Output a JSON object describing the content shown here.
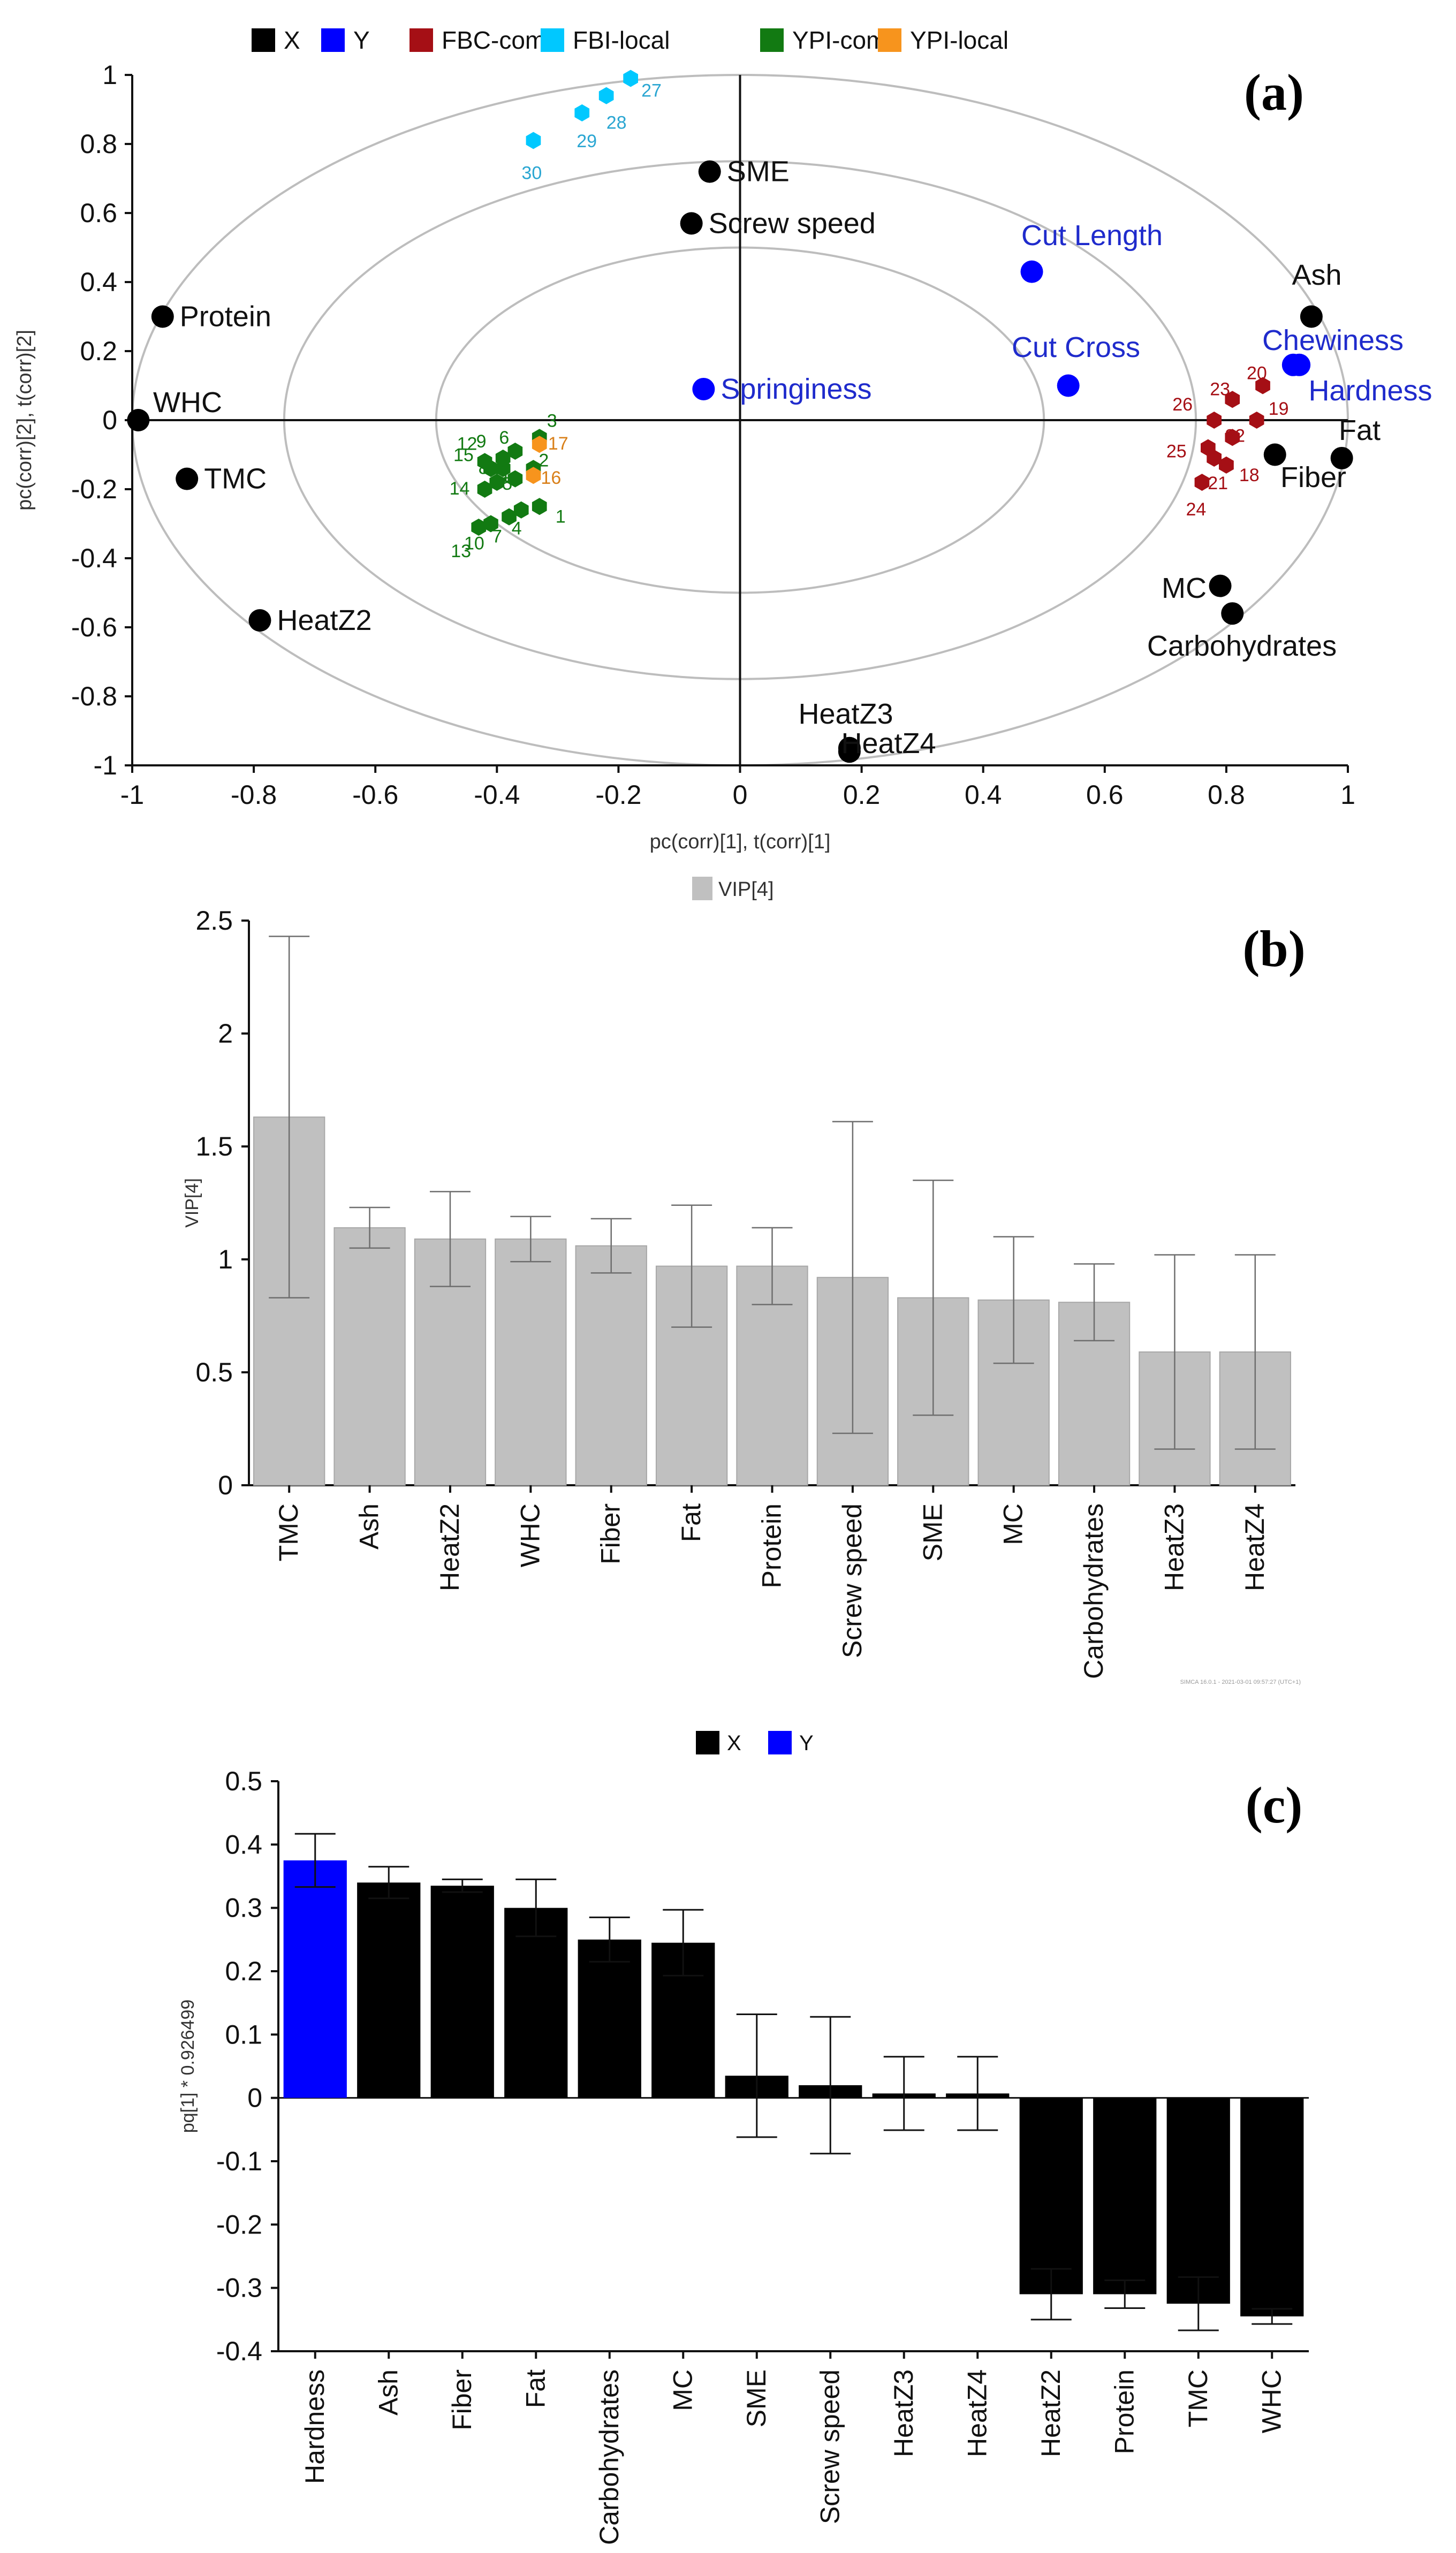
{
  "colors": {
    "x": "#000000",
    "y": "#0000ff",
    "fbc_com": "#a50f15",
    "fbi_local": "#00c8ff",
    "ypi_com": "#127a12",
    "ypi_local": "#f7941d",
    "vip_bar": "#c0c0c0",
    "text_blue": "#1f2bcc",
    "fbi_text": "#2aa6d2",
    "fbc_text": "#a50f15",
    "ypi_text": "#127a12",
    "ypi_local_text": "#d9801a"
  },
  "chart_data": [
    {
      "type": "scatter",
      "panel_label": "(a)",
      "title": "",
      "xlabel": "pc(corr)[1], t(corr)[1]",
      "ylabel": "pc(corr)[2], t(corr)[2]",
      "xlim": [
        -1,
        1
      ],
      "ylim": [
        -1,
        1
      ],
      "x_ticks": [
        "-1",
        "-0.8",
        "-0.6",
        "-0.4",
        "-0.2",
        "0",
        "0.2",
        "0.4",
        "0.6",
        "0.8",
        "1"
      ],
      "y_ticks": [
        "1",
        "0.8",
        "0.6",
        "0.4",
        "0.2",
        "0",
        "-0.2",
        "-0.4",
        "-0.6",
        "-0.8",
        "-1"
      ],
      "circles_r": [
        1.0,
        0.75,
        0.5
      ],
      "legend": [
        {
          "label": "X",
          "key": "x"
        },
        {
          "label": "Y",
          "key": "y"
        },
        {
          "label": "FBC-com",
          "key": "fbc_com"
        },
        {
          "label": "FBI-local",
          "key": "fbi_local"
        },
        {
          "label": "YPI-com",
          "key": "ypi_com"
        },
        {
          "label": "YPI-local",
          "key": "ypi_local"
        }
      ],
      "x_variables": [
        {
          "label": "SME",
          "x": -0.05,
          "y": 0.72,
          "pos": "right"
        },
        {
          "label": "Screw speed",
          "x": -0.08,
          "y": 0.57,
          "pos": "right"
        },
        {
          "label": "Protein",
          "x": -0.95,
          "y": 0.3,
          "pos": "right"
        },
        {
          "label": "WHC",
          "x": -0.99,
          "y": 0.0,
          "pos": "upright"
        },
        {
          "label": "TMC",
          "x": -0.91,
          "y": -0.17,
          "pos": "right"
        },
        {
          "label": "HeatZ2",
          "x": -0.79,
          "y": -0.58,
          "pos": "right"
        },
        {
          "label": "Ash",
          "x": 0.94,
          "y": 0.3,
          "pos": "up"
        },
        {
          "label": "Fat",
          "x": 0.99,
          "y": -0.11,
          "pos": "upright"
        },
        {
          "label": "Fiber",
          "x": 0.88,
          "y": -0.1,
          "pos": "downright"
        },
        {
          "label": "MC",
          "x": 0.79,
          "y": -0.48,
          "pos": "left"
        },
        {
          "label": "Carbohydrates",
          "x": 0.81,
          "y": -0.56,
          "pos": "below"
        },
        {
          "label": "HeatZ3",
          "x": 0.18,
          "y": -0.95,
          "pos": "upleft"
        },
        {
          "label": "HeatZ4",
          "x": 0.18,
          "y": -0.96,
          "pos": "right"
        }
      ],
      "y_variables": [
        {
          "label": "Cut Length",
          "x": 0.48,
          "y": 0.43,
          "pos": "up"
        },
        {
          "label": "Cut Cross",
          "x": 0.54,
          "y": 0.1,
          "pos": "upleft"
        },
        {
          "label": "Springiness",
          "x": -0.06,
          "y": 0.09,
          "pos": "right"
        },
        {
          "label": "Chewiness",
          "x": 0.91,
          "y": 0.16,
          "pos": "upleft"
        },
        {
          "label": "Hardness",
          "x": 0.92,
          "y": 0.16,
          "pos": "downright"
        }
      ],
      "observations": [
        {
          "id": "1",
          "group": "ypi_com",
          "x": -0.33,
          "y": -0.25
        },
        {
          "id": "2",
          "group": "ypi_com",
          "x": -0.34,
          "y": -0.14
        },
        {
          "id": "3",
          "group": "ypi_com",
          "x": -0.33,
          "y": -0.05
        },
        {
          "id": "4",
          "group": "ypi_com",
          "x": -0.36,
          "y": -0.26
        },
        {
          "id": "5",
          "group": "ypi_com",
          "x": -0.4,
          "y": -0.18
        },
        {
          "id": "6",
          "group": "ypi_com",
          "x": -0.37,
          "y": -0.09
        },
        {
          "id": "7",
          "group": "ypi_com",
          "x": -0.38,
          "y": -0.28
        },
        {
          "id": "8",
          "group": "ypi_com",
          "x": -0.39,
          "y": -0.14
        },
        {
          "id": "9",
          "group": "ypi_com",
          "x": -0.39,
          "y": -0.11
        },
        {
          "id": "10",
          "group": "ypi_com",
          "x": -0.41,
          "y": -0.3
        },
        {
          "id": "11",
          "group": "ypi_com",
          "x": -0.37,
          "y": -0.17
        },
        {
          "id": "12",
          "group": "ypi_com",
          "x": -0.42,
          "y": -0.12
        },
        {
          "id": "13",
          "group": "ypi_com",
          "x": -0.43,
          "y": -0.31
        },
        {
          "id": "14",
          "group": "ypi_com",
          "x": -0.42,
          "y": -0.2
        },
        {
          "id": "15",
          "group": "ypi_com",
          "x": -0.41,
          "y": -0.14
        },
        {
          "id": "16",
          "group": "ypi_local",
          "x": -0.34,
          "y": -0.16
        },
        {
          "id": "17",
          "group": "ypi_local",
          "x": -0.33,
          "y": -0.07
        },
        {
          "id": "18",
          "group": "fbc_com",
          "x": 0.8,
          "y": -0.13
        },
        {
          "id": "19",
          "group": "fbc_com",
          "x": 0.85,
          "y": 0.0
        },
        {
          "id": "20",
          "group": "fbc_com",
          "x": 0.86,
          "y": 0.1
        },
        {
          "id": "21",
          "group": "fbc_com",
          "x": 0.78,
          "y": -0.11
        },
        {
          "id": "22",
          "group": "fbc_com",
          "x": 0.81,
          "y": -0.05
        },
        {
          "id": "23",
          "group": "fbc_com",
          "x": 0.81,
          "y": 0.06
        },
        {
          "id": "24",
          "group": "fbc_com",
          "x": 0.76,
          "y": -0.18
        },
        {
          "id": "25",
          "group": "fbc_com",
          "x": 0.77,
          "y": -0.08
        },
        {
          "id": "26",
          "group": "fbc_com",
          "x": 0.78,
          "y": 0.0
        },
        {
          "id": "27",
          "group": "fbi_local",
          "x": -0.18,
          "y": 0.99
        },
        {
          "id": "28",
          "group": "fbi_local",
          "x": -0.22,
          "y": 0.94
        },
        {
          "id": "29",
          "group": "fbi_local",
          "x": -0.26,
          "y": 0.89
        },
        {
          "id": "30",
          "group": "fbi_local",
          "x": -0.34,
          "y": 0.81
        }
      ]
    },
    {
      "type": "bar",
      "panel_label": "(b)",
      "legend": "VIP[4]",
      "ylabel": "VIP[4]",
      "xlabel": "",
      "ylim": [
        0,
        2.5
      ],
      "y_ticks": [
        "0",
        "0.5",
        "1",
        "1.5",
        "2",
        "2.5"
      ],
      "categories": [
        "TMC",
        "Ash",
        "HeatZ2",
        "WHC",
        "Fiber",
        "Fat",
        "Protein",
        "Screw speed",
        "SME",
        "MC",
        "Carbohydrates",
        "HeatZ3",
        "HeatZ4"
      ],
      "values": [
        1.63,
        1.14,
        1.09,
        1.09,
        1.06,
        0.97,
        0.97,
        0.92,
        0.83,
        0.82,
        0.81,
        0.59,
        0.59
      ],
      "error": [
        0.8,
        0.09,
        0.21,
        0.1,
        0.12,
        0.27,
        0.17,
        0.69,
        0.52,
        0.28,
        0.17,
        0.43,
        0.43
      ],
      "footnote": "SIMCA 16.0.1 - 2021-03-01 09:57:27 (UTC+1)"
    },
    {
      "type": "bar",
      "panel_label": "(c)",
      "ylabel": "pq[1] * 0.926499",
      "xlabel": "",
      "ylim": [
        -0.4,
        0.5
      ],
      "y_ticks": [
        "0.5",
        "0.4",
        "0.3",
        "0.2",
        "0.1",
        "0",
        "-0.1",
        "-0.2",
        "-0.3",
        "-0.4"
      ],
      "legend": [
        {
          "label": "X",
          "key": "x"
        },
        {
          "label": "Y",
          "key": "y"
        }
      ],
      "categories": [
        "Hardness",
        "Ash",
        "Fiber",
        "Fat",
        "Carbohydrates",
        "MC",
        "SME",
        "Screw speed",
        "HeatZ3",
        "HeatZ4",
        "HeatZ2",
        "Protein",
        "TMC",
        "WHC"
      ],
      "groups": [
        "y",
        "x",
        "x",
        "x",
        "x",
        "x",
        "x",
        "x",
        "x",
        "x",
        "x",
        "x",
        "x",
        "x"
      ],
      "values": [
        0.375,
        0.34,
        0.335,
        0.3,
        0.25,
        0.245,
        0.035,
        0.02,
        0.007,
        0.007,
        -0.31,
        -0.31,
        -0.325,
        -0.345
      ],
      "error": [
        0.042,
        0.025,
        0.01,
        0.045,
        0.035,
        0.052,
        0.097,
        0.108,
        0.058,
        0.058,
        0.04,
        0.022,
        0.042,
        0.012
      ]
    }
  ]
}
